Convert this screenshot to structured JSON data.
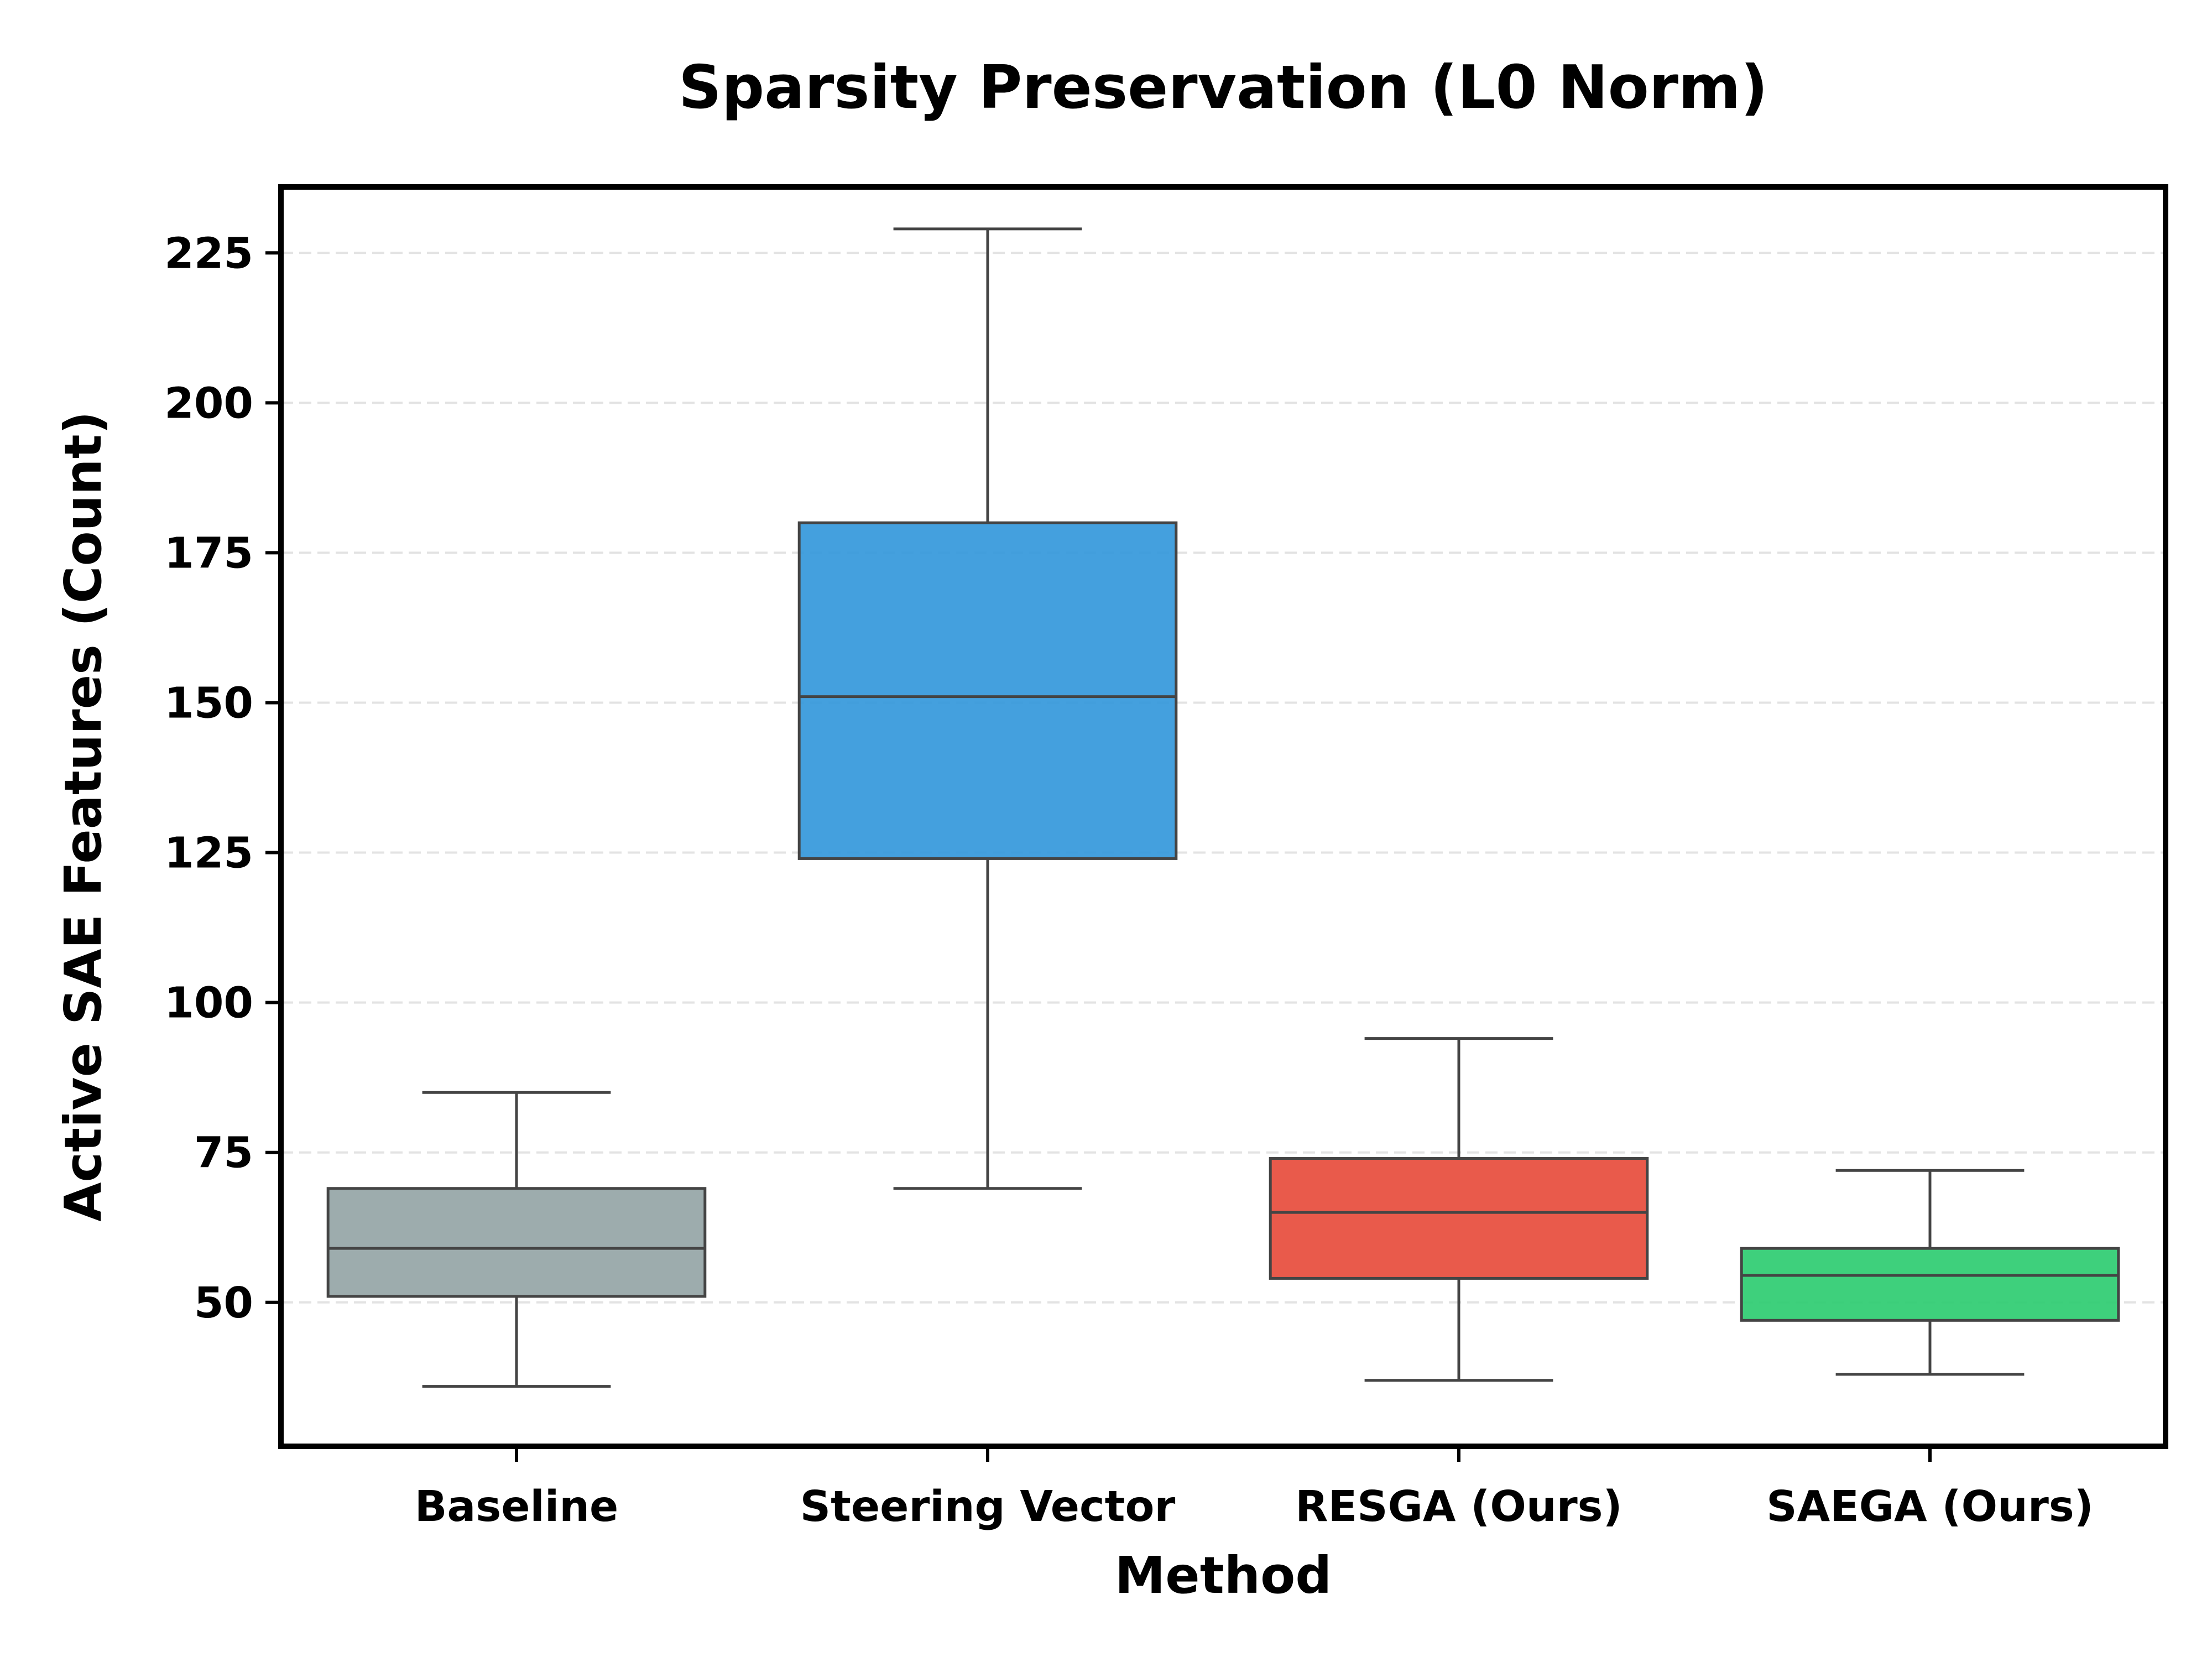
{
  "chart_data": {
    "type": "box",
    "title": "Sparsity Preservation (L0 Norm)",
    "xlabel": "Method",
    "ylabel": "Active SAE Features (Count)",
    "ylim": [
      26,
      236
    ],
    "yticks": [
      50,
      75,
      100,
      125,
      150,
      175,
      200,
      225
    ],
    "grid": "horizontal-dashed",
    "categories": [
      "Baseline",
      "Steering Vector",
      "RESGA (Ours)",
      "SAEGA (Ours)"
    ],
    "boxes": [
      {
        "name": "Baseline",
        "whisker_low": 36,
        "q1": 51,
        "median": 59,
        "q3": 69,
        "whisker_high": 85,
        "color": "#95a5a6"
      },
      {
        "name": "Steering Vector",
        "whisker_low": 69,
        "q1": 124,
        "median": 151,
        "q3": 180,
        "whisker_high": 229,
        "color": "#3498db"
      },
      {
        "name": "RESGA (Ours)",
        "whisker_low": 37,
        "q1": 54,
        "median": 65,
        "q3": 74,
        "whisker_high": 94,
        "color": "#e74c3c"
      },
      {
        "name": "SAEGA (Ours)",
        "whisker_low": 38,
        "q1": 47,
        "median": 54.5,
        "q3": 59,
        "whisker_high": 72,
        "color": "#2ecc71"
      }
    ],
    "line_color": "#444444",
    "frame_color": "#000000",
    "grid_color": "#e3e3e3"
  }
}
